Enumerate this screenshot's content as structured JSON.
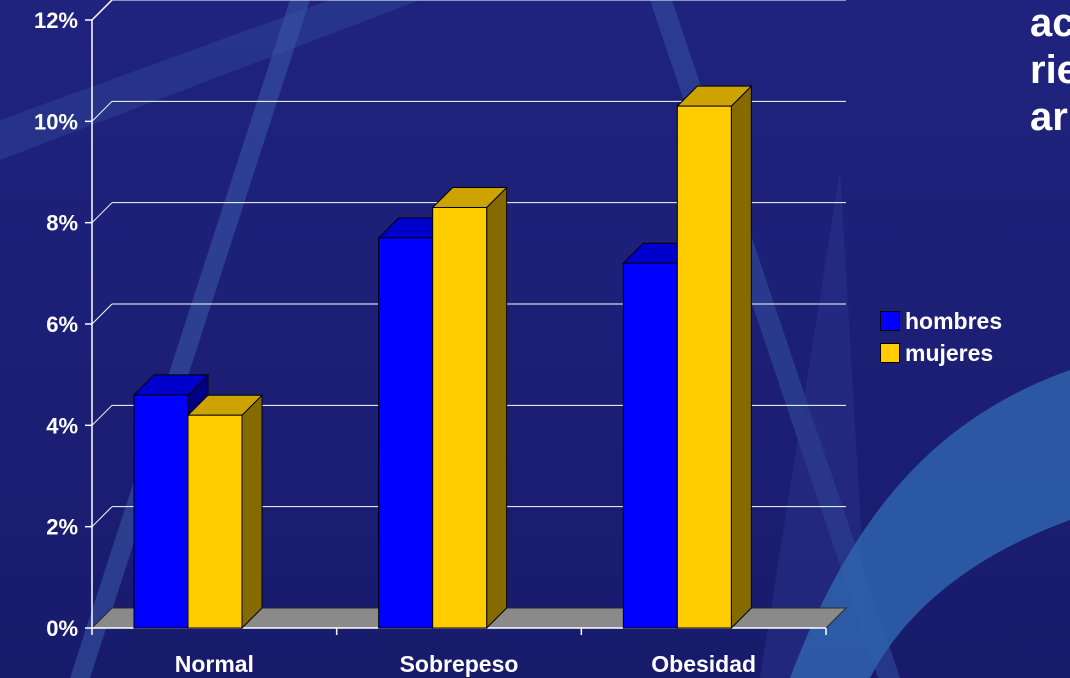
{
  "chart_data": {
    "type": "bar",
    "categories": [
      "Normal",
      "Sobrepeso",
      "Obesidad"
    ],
    "series": [
      {
        "name": "hombres",
        "color": "#0000ff",
        "values": [
          4.6,
          7.7,
          7.2
        ]
      },
      {
        "name": "mujeres",
        "color": "#ffcc00",
        "values": [
          4.2,
          8.3,
          10.3
        ]
      }
    ],
    "ylim": [
      0,
      12
    ],
    "yticks": [
      "0%",
      "2%",
      "4%",
      "6%",
      "8%",
      "10%",
      "12%"
    ],
    "grid": true,
    "legend_position": "right",
    "style": "3d"
  },
  "side_text": [
    "ac",
    "rie",
    "ar"
  ]
}
